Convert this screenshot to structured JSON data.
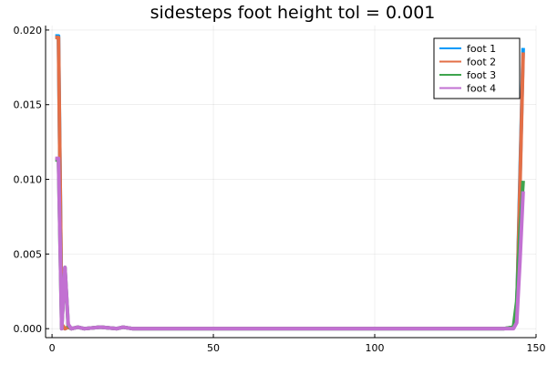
{
  "chart_data": {
    "type": "line",
    "title": "sidesteps foot height tol = 0.001",
    "xlabel": "",
    "ylabel": "",
    "xlim": [
      -2,
      150
    ],
    "ylim": [
      -0.0006,
      0.0203
    ],
    "xticks": [
      0,
      50,
      100,
      150
    ],
    "xtick_labels": [
      "0",
      "50",
      "100",
      "150"
    ],
    "yticks": [
      0.0,
      0.005,
      0.01,
      0.015,
      0.02
    ],
    "ytick_labels": [
      "0.000",
      "0.005",
      "0.010",
      "0.015",
      "0.020"
    ],
    "grid": true,
    "legend_position": "top-right",
    "series": [
      {
        "name": "foot 1",
        "color": "#009AFA",
        "x": [
          1,
          2,
          3,
          4,
          5,
          6,
          8,
          10,
          15,
          20,
          22,
          25,
          30,
          40,
          50,
          60,
          70,
          80,
          90,
          100,
          110,
          120,
          130,
          140,
          143,
          144,
          145,
          146
        ],
        "y": [
          0.0196,
          0.0196,
          0.0002,
          0.0,
          0.0001,
          0.0,
          0.0001,
          0.0,
          0.0001,
          0.0,
          0.0001,
          0.0,
          0.0,
          0.0,
          0.0,
          0.0,
          0.0,
          0.0,
          0.0,
          0.0,
          0.0,
          0.0,
          0.0,
          0.0,
          0.0001,
          0.0008,
          0.01,
          0.0188
        ]
      },
      {
        "name": "foot 2",
        "color": "#E36F47",
        "x": [
          1,
          2,
          3,
          4,
          5,
          6,
          8,
          10,
          15,
          20,
          22,
          25,
          30,
          40,
          50,
          60,
          70,
          80,
          90,
          100,
          110,
          120,
          130,
          140,
          143,
          144,
          145,
          146
        ],
        "y": [
          0.0195,
          0.0195,
          0.0003,
          0.0,
          0.0001,
          0.0,
          0.0001,
          0.0,
          0.0001,
          0.0,
          0.0001,
          0.0,
          0.0,
          0.0,
          0.0,
          0.0,
          0.0,
          0.0,
          0.0,
          0.0,
          0.0,
          0.0,
          0.0,
          0.0,
          0.0001,
          0.0008,
          0.0095,
          0.0185
        ]
      },
      {
        "name": "foot 3",
        "color": "#3EA44E",
        "x": [
          1,
          2,
          3,
          4,
          5,
          6,
          8,
          10,
          15,
          20,
          22,
          25,
          30,
          40,
          50,
          60,
          70,
          80,
          90,
          100,
          110,
          120,
          130,
          140,
          143,
          144,
          145,
          146
        ],
        "y": [
          0.0113,
          0.0113,
          0.0,
          0.0041,
          0.0002,
          0.0,
          0.0001,
          0.0,
          0.0001,
          0.0,
          0.0001,
          0.0,
          0.0,
          0.0,
          0.0,
          0.0,
          0.0,
          0.0,
          0.0,
          0.0,
          0.0,
          0.0,
          0.0,
          0.0,
          0.0001,
          0.0018,
          0.0065,
          0.0099
        ]
      },
      {
        "name": "foot 4",
        "color": "#C271D2",
        "x": [
          1,
          2,
          3,
          4,
          5,
          6,
          8,
          10,
          15,
          20,
          22,
          25,
          30,
          40,
          50,
          60,
          70,
          80,
          90,
          100,
          110,
          120,
          130,
          140,
          143,
          144,
          145,
          146
        ],
        "y": [
          0.0114,
          0.0114,
          0.0,
          0.0041,
          0.0003,
          0.0,
          0.0001,
          0.0,
          0.0001,
          0.0,
          0.0001,
          0.0,
          0.0,
          0.0,
          0.0,
          0.0,
          0.0,
          0.0,
          0.0,
          0.0,
          0.0,
          0.0,
          0.0,
          0.0,
          0.0,
          0.0004,
          0.0045,
          0.0092
        ]
      }
    ]
  }
}
